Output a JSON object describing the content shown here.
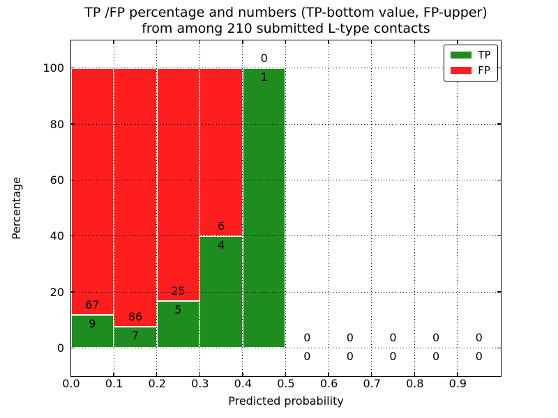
{
  "title": {
    "line1": "TP /FP percentage and numbers (TP-bottom value, FP-upper)",
    "line2": "from among 210 submitted L-type contacts"
  },
  "chart_data": {
    "type": "bar",
    "subtype": "stacked-percentage-histogram",
    "title": "TP /FP percentage and numbers (TP-bottom value, FP-upper)\nfrom among 210 submitted L-type contacts",
    "xlabel": "Predicted probability",
    "ylabel": "Percentage",
    "xlim": [
      0.0,
      1.0
    ],
    "ylim": [
      -10,
      110
    ],
    "xticks": [
      "0.0",
      "0.1",
      "0.2",
      "0.3",
      "0.4",
      "0.5",
      "0.6",
      "0.7",
      "0.8",
      "0.9"
    ],
    "yticks": [
      0,
      20,
      40,
      60,
      80,
      100
    ],
    "grid": "dotted, both axes, drawn over bars",
    "total_contacts": 210,
    "legend": {
      "position": "upper right",
      "entries": [
        {
          "label": "TP",
          "color": "#1E8C1E"
        },
        {
          "label": "FP",
          "color": "#FF1E1E"
        }
      ]
    },
    "categories": [
      "0.0-0.1",
      "0.1-0.2",
      "0.2-0.3",
      "0.3-0.4",
      "0.4-0.5",
      "0.5-0.6",
      "0.6-0.7",
      "0.7-0.8",
      "0.8-0.9",
      "0.9-1.0"
    ],
    "series": [
      {
        "name": "TP",
        "counts": [
          9,
          7,
          5,
          4,
          1,
          0,
          0,
          0,
          0,
          0
        ]
      },
      {
        "name": "FP",
        "counts": [
          67,
          86,
          25,
          6,
          0,
          0,
          0,
          0,
          0,
          0
        ]
      }
    ],
    "bins": [
      {
        "range": [
          0.0,
          0.1
        ],
        "tp": 9,
        "fp": 67,
        "tp_pct": 11.84,
        "bar_total_pct": 100
      },
      {
        "range": [
          0.1,
          0.2
        ],
        "tp": 7,
        "fp": 86,
        "tp_pct": 7.53,
        "bar_total_pct": 100
      },
      {
        "range": [
          0.2,
          0.3
        ],
        "tp": 5,
        "fp": 25,
        "tp_pct": 16.67,
        "bar_total_pct": 100
      },
      {
        "range": [
          0.3,
          0.4
        ],
        "tp": 4,
        "fp": 6,
        "tp_pct": 40.0,
        "bar_total_pct": 100
      },
      {
        "range": [
          0.4,
          0.5
        ],
        "tp": 1,
        "fp": 0,
        "tp_pct": 100.0,
        "bar_total_pct": 100
      },
      {
        "range": [
          0.5,
          0.6
        ],
        "tp": 0,
        "fp": 0,
        "tp_pct": null,
        "bar_total_pct": 0
      },
      {
        "range": [
          0.6,
          0.7
        ],
        "tp": 0,
        "fp": 0,
        "tp_pct": null,
        "bar_total_pct": 0
      },
      {
        "range": [
          0.7,
          0.8
        ],
        "tp": 0,
        "fp": 0,
        "tp_pct": null,
        "bar_total_pct": 0
      },
      {
        "range": [
          0.8,
          0.9
        ],
        "tp": 0,
        "fp": 0,
        "tp_pct": null,
        "bar_total_pct": 0
      },
      {
        "range": [
          0.9,
          1.0
        ],
        "tp": 0,
        "fp": 0,
        "tp_pct": null,
        "bar_total_pct": 0
      }
    ]
  },
  "colors": {
    "tp_green": "#1E8C1E",
    "fp_red": "#FF1E1E",
    "grid": "#000000",
    "background": "#FFFFFF"
  }
}
